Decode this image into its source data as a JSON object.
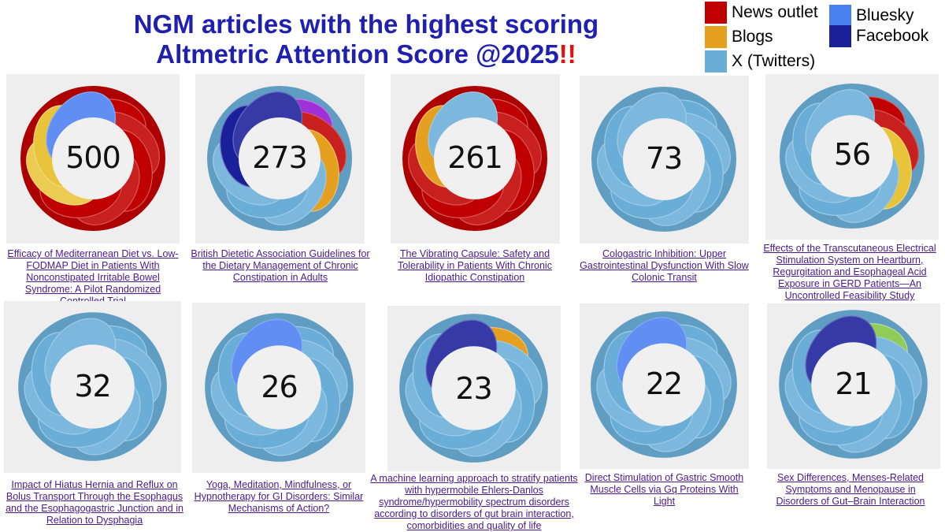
{
  "title": {
    "line1": "NGM articles with the highest scoring",
    "line2": "Altmetric Attention Score @2025",
    "exclaim": "!!"
  },
  "legend": [
    {
      "label": "News outlet",
      "color": "#c00000"
    },
    {
      "label": "Blogs",
      "color": "#e5a020"
    },
    {
      "label": "X (Twitters)",
      "color": "#6aaed8"
    },
    {
      "label": "Bluesky",
      "color": "#4a7ff0"
    },
    {
      "label": "Facebook",
      "color": "#1a1f9a"
    }
  ],
  "colors": {
    "news": "#c00000",
    "blogs": "#e5a020",
    "x": "#6aaed8",
    "bluesky": "#4a7ff0",
    "facebook": "#1a1f9a",
    "purple": "#a030d8",
    "green": "#90cc58",
    "yellow": "#e8c43a"
  },
  "cards": [
    {
      "score": "500",
      "title": "Efficacy of Mediterranean Diet vs. Low-FODMAP Diet in Patients With Nonconstipated Irritable Bowel Syndrome: A Pilot Randomized Controlled Trial",
      "segments": [
        [
          "news",
          0.68
        ],
        [
          "yellow",
          0.16
        ],
        [
          "x",
          0.06
        ],
        [
          "bluesky",
          0.1
        ]
      ]
    },
    {
      "score": "273",
      "title": "British Dietetic Association Guidelines for the Dietary Management of Chronic Constipation in Adults",
      "segments": [
        [
          "purple",
          0.08
        ],
        [
          "news",
          0.12
        ],
        [
          "blogs",
          0.14
        ],
        [
          "x",
          0.46
        ],
        [
          "facebook",
          0.2
        ]
      ]
    },
    {
      "score": "261",
      "title": "The Vibrating Capsule: Safety and Tolerability in Patients With Chronic Idiopathic Constipation",
      "segments": [
        [
          "news",
          0.78
        ],
        [
          "blogs",
          0.14
        ],
        [
          "x",
          0.08
        ]
      ]
    },
    {
      "score": "73",
      "title": "Cologastric Inhibition: Upper Gastrointestinal Dysfunction With Slow Colonic Transit",
      "segments": [
        [
          "x",
          1.0
        ]
      ]
    },
    {
      "score": "56",
      "title": "Effects of the Transcutaneous Electrical Stimulation System on Heartburn, Regurgitation and Esophageal Acid Exposure in GERD Patients—An Uncontrolled Feasibility Study",
      "segments": [
        [
          "news",
          0.28
        ],
        [
          "yellow",
          0.14
        ],
        [
          "x",
          0.58
        ]
      ]
    },
    {
      "score": "32",
      "title": "Impact of Hiatus Hernia and Reflux on Bolus Transport Through the Esophagus and the Esophagogastric Junction and in Relation to Dysphagia",
      "segments": [
        [
          "x",
          1.0
        ]
      ]
    },
    {
      "score": "26",
      "title": "Yoga, Meditation, Mindfulness, or Hypnotherapy for GI Disorders: Similar Mechanisms of Action?",
      "segments": [
        [
          "x",
          0.88
        ],
        [
          "bluesky",
          0.12
        ]
      ]
    },
    {
      "score": "23",
      "title": "A machine learning approach to stratify patients with hypermobile Ehlers-Danlos syndrome/hypermobility spectrum disorders according to disorders of gut brain interaction, comorbidities and quality of life",
      "segments": [
        [
          "blogs",
          0.16
        ],
        [
          "x",
          0.7
        ],
        [
          "facebook",
          0.14
        ]
      ]
    },
    {
      "score": "22",
      "title": "Direct Stimulation of Gastric Smooth Muscle Cells via Gq Proteins With Light",
      "segments": [
        [
          "x",
          0.88
        ],
        [
          "bluesky",
          0.12
        ]
      ]
    },
    {
      "score": "21",
      "title": "Sex Differences, Menses-Related Symptoms and Menopause in Disorders of Gut–Brain Interaction",
      "segments": [
        [
          "green",
          0.18
        ],
        [
          "x",
          0.64
        ],
        [
          "facebook",
          0.18
        ]
      ]
    }
  ]
}
